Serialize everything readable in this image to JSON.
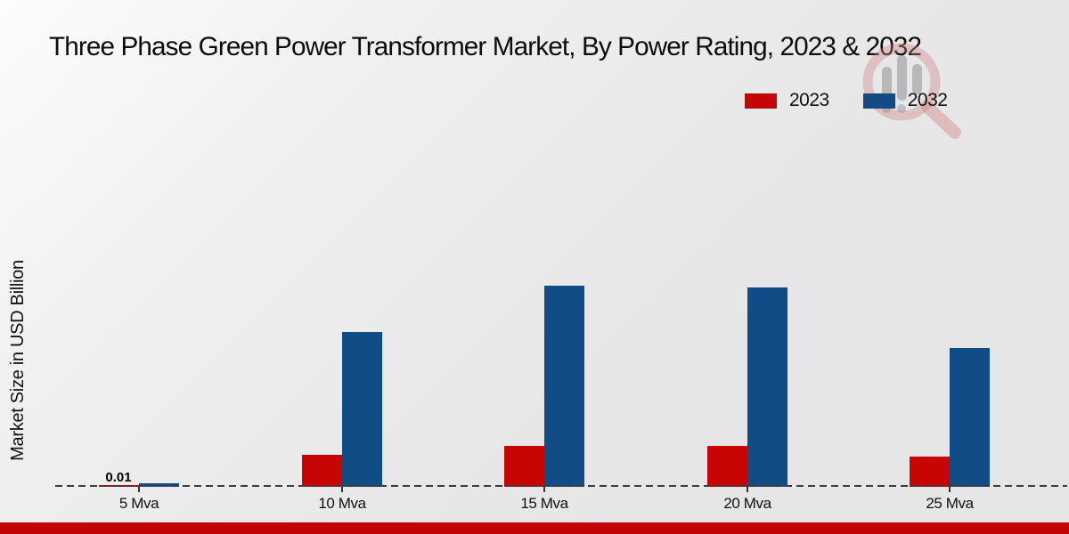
{
  "page": {
    "footer_band_color": "#c10505",
    "background_start": "#fdfdfd",
    "background_end": "#e5e5e6"
  },
  "chart_data": {
    "type": "bar",
    "title": "Three Phase Green Power Transformer Market, By Power Rating, 2023 & 2032",
    "ylabel": "Market Size in USD Billion",
    "xlabel": "",
    "categories": [
      "5 Mva",
      "10 Mva",
      "15 Mva",
      "20 Mva",
      "25 Mva"
    ],
    "series": [
      {
        "name": "2023",
        "color": "#c80505",
        "values": [
          0.01,
          0.18,
          0.23,
          0.23,
          0.17
        ]
      },
      {
        "name": "2032",
        "color": "#124c86",
        "values": [
          0.02,
          0.87,
          1.13,
          1.12,
          0.78
        ]
      }
    ],
    "ylim": [
      0,
      1.25
    ],
    "grid": false,
    "y_axis_ticks_visible": false,
    "baseline_style": "dashed",
    "legend_position": "top-right",
    "annotations": [
      {
        "text": "0.01",
        "category": "5 Mva",
        "series": "2023"
      }
    ]
  },
  "legend": {
    "items": [
      {
        "label": "2023",
        "color": "#c80505"
      },
      {
        "label": "2032",
        "color": "#124c86"
      }
    ]
  },
  "watermark": {
    "name": "market-research-logo-watermark"
  }
}
